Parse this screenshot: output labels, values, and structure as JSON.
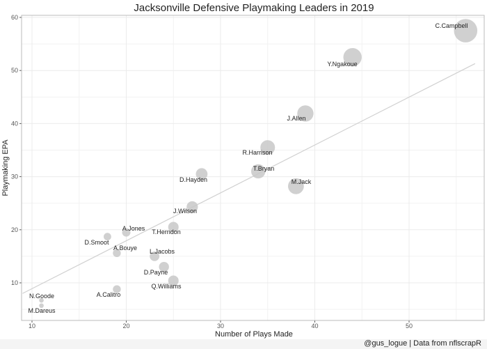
{
  "chart_data": {
    "type": "scatter",
    "title": "Jacksonville Defensive Playmaking Leaders in 2019",
    "xlabel": "Number of Plays Made",
    "ylabel": "Playmaking EPA",
    "xlim": [
      9,
      57
    ],
    "ylim": [
      3,
      61
    ],
    "xticks": [
      10,
      20,
      30,
      40,
      50
    ],
    "yticks": [
      10,
      20,
      30,
      40,
      50,
      60
    ],
    "grid": true,
    "point_size_by": "Number of Plays Made",
    "point_color": "#c8c8c8",
    "trend_line": {
      "type": "linear fit",
      "color": "#d0d0d0",
      "from": [
        9,
        8.0
      ],
      "to": [
        57,
        51.3
      ]
    },
    "points": [
      {
        "label": "C.Campbell",
        "x": 56,
        "y": 57.5
      },
      {
        "label": "Y.Ngakoue",
        "x": 44,
        "y": 52.5
      },
      {
        "label": "J.Allen",
        "x": 39,
        "y": 41.9
      },
      {
        "label": "R.Harrison",
        "x": 35,
        "y": 35.5
      },
      {
        "label": "T.Bryan",
        "x": 34,
        "y": 31.0
      },
      {
        "label": "M.Jack",
        "x": 38,
        "y": 28.2
      },
      {
        "label": "D.Hayden",
        "x": 28,
        "y": 30.5
      },
      {
        "label": "J.Wilson",
        "x": 27,
        "y": 24.3
      },
      {
        "label": "T.Herndon",
        "x": 25,
        "y": 20.5
      },
      {
        "label": "A.Jones",
        "x": 20,
        "y": 19.5
      },
      {
        "label": "D.Smoot",
        "x": 18,
        "y": 18.7
      },
      {
        "label": "A.Bouye",
        "x": 19,
        "y": 15.6
      },
      {
        "label": "L.Jacobs",
        "x": 23,
        "y": 15.0
      },
      {
        "label": "D.Payne",
        "x": 24,
        "y": 13.0
      },
      {
        "label": "Q.Williams",
        "x": 25,
        "y": 10.4
      },
      {
        "label": "A.Calitro",
        "x": 19,
        "y": 8.8
      },
      {
        "label": "N.Goode",
        "x": 11,
        "y": 6.7
      },
      {
        "label": "M.Dareus",
        "x": 11,
        "y": 5.7
      }
    ]
  },
  "caption": "@gus_logue | Data from nflscrapR"
}
